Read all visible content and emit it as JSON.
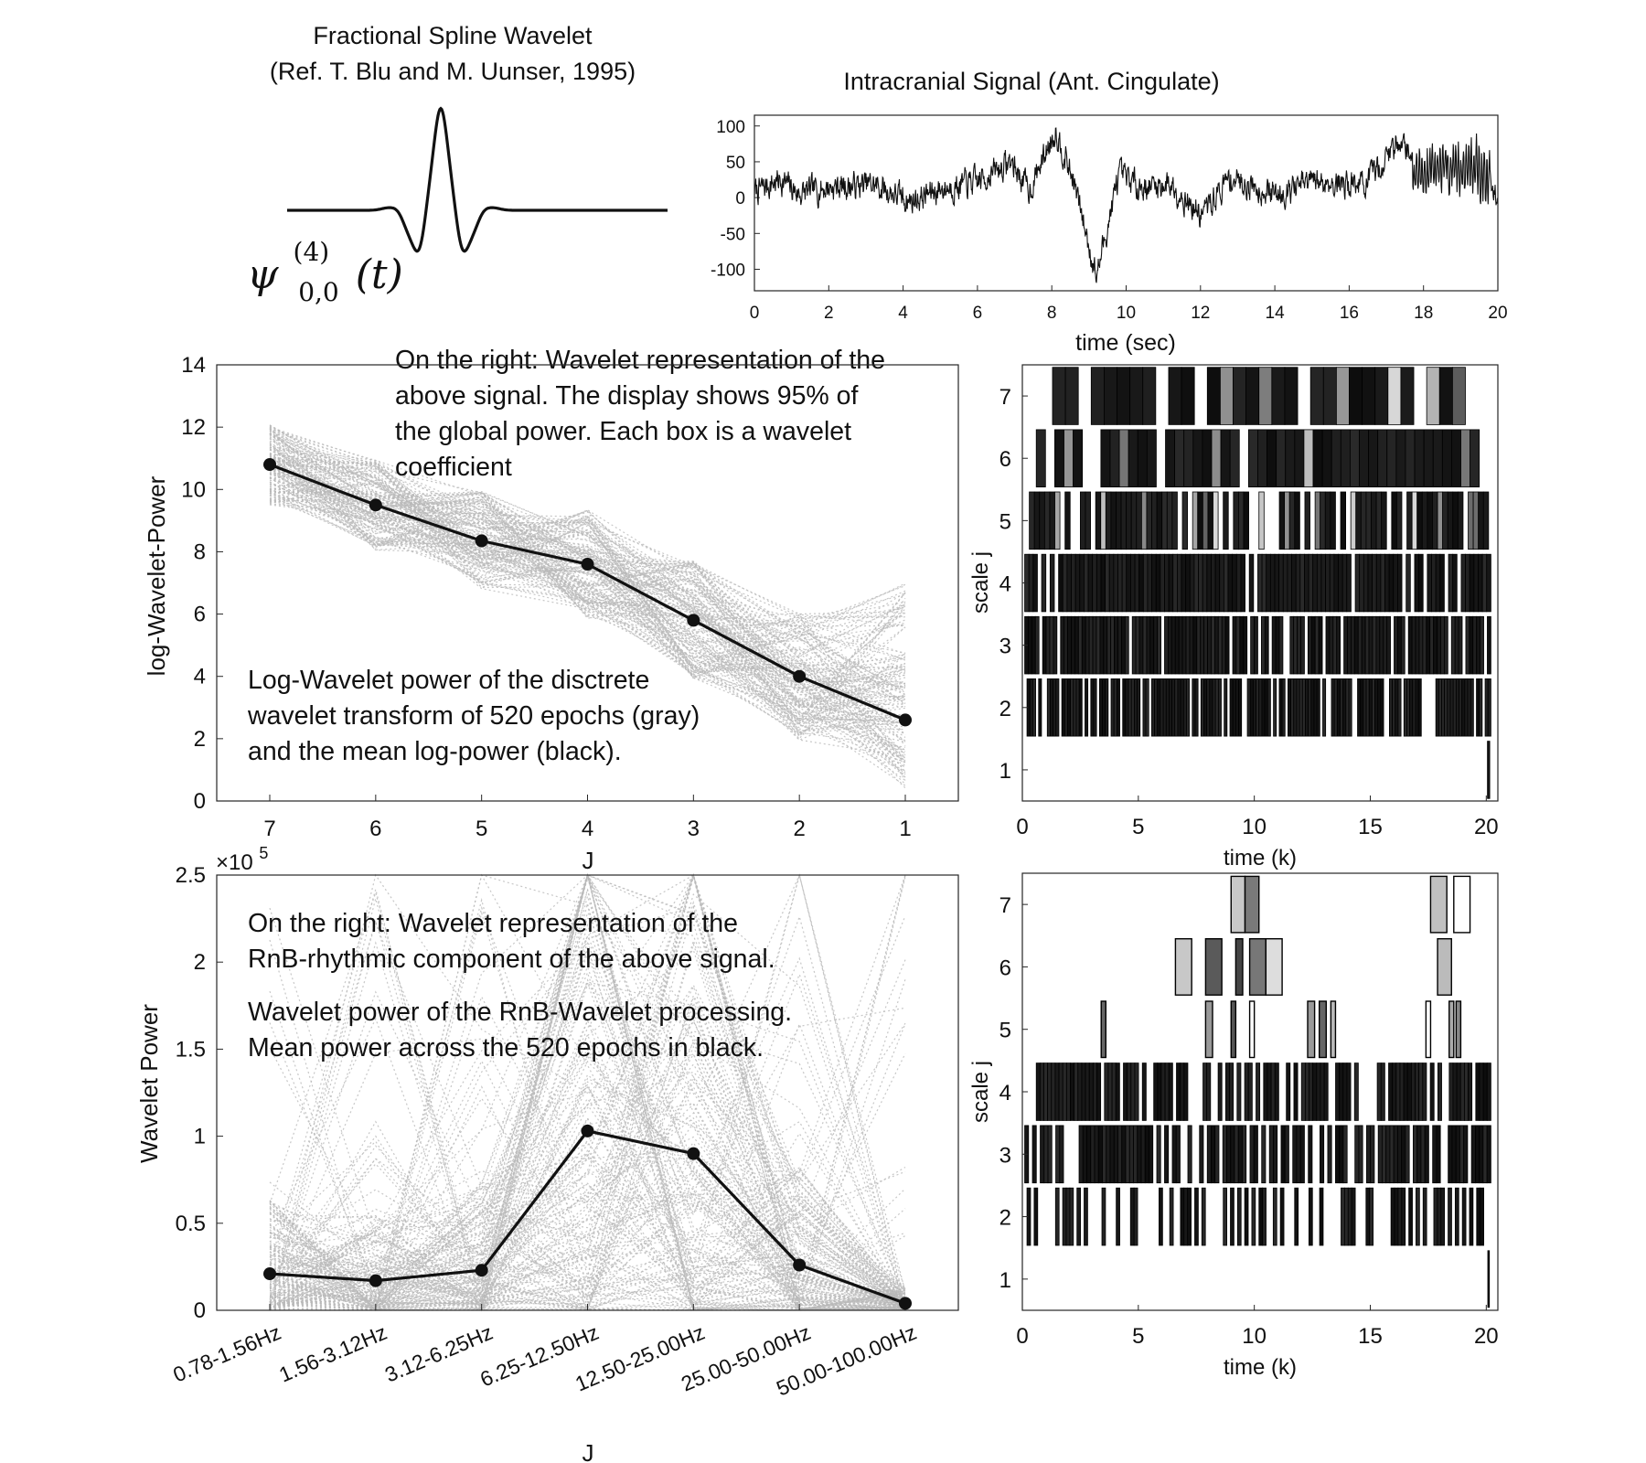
{
  "wavelet_panel": {
    "title_line1": "Fractional Spline Wavelet",
    "title_line2": "(Ref. T. Blu and M. Uunser, 1995)",
    "formula_main": "ψ",
    "formula_sup": "(4)",
    "formula_sub": "0,0",
    "formula_arg": "(t)"
  },
  "annotations": {
    "mid_right_1": "On the right: Wavelet representation of the",
    "mid_right_2": "above signal. The display shows 95% of",
    "mid_right_3": "the global power. Each box is a wavelet",
    "mid_right_4": "coefficient",
    "mid_low_1": "Log-Wavelet power of the disctrete",
    "mid_low_2": "wavelet transform of 520 epochs (gray)",
    "mid_low_3": "and the mean log-power (black).",
    "bot_1": "On the right: Wavelet representation of the",
    "bot_2": "RnB-rhythmic component of the above signal.",
    "bot_3": "Wavelet power of the RnB-Wavelet processing.",
    "bot_4": "Mean power across the 520 epochs in black."
  },
  "colors": {
    "ink": "#111111",
    "gray_lines": "#b9b9b9",
    "axis": "#262626"
  },
  "chart_data": [
    {
      "id": "signal",
      "type": "line",
      "title": "Intracranial Signal (Ant. Cingulate)",
      "xlabel": "time (sec)",
      "ylabel": "",
      "xlim": [
        0,
        20
      ],
      "ylim": [
        -130,
        115
      ],
      "xticks": [
        0,
        2,
        4,
        6,
        8,
        10,
        12,
        14,
        16,
        18,
        20
      ],
      "yticks": [
        100,
        50,
        0,
        -50,
        -100
      ],
      "envelope": [
        [
          0,
          8
        ],
        [
          0.7,
          25
        ],
        [
          1.2,
          5
        ],
        [
          2,
          15
        ],
        [
          3.2,
          18
        ],
        [
          4.2,
          -5
        ],
        [
          5,
          12
        ],
        [
          6,
          22
        ],
        [
          6.9,
          50
        ],
        [
          7.4,
          10
        ],
        [
          8.1,
          95
        ],
        [
          8.6,
          20
        ],
        [
          9.2,
          -110
        ],
        [
          9.8,
          30
        ],
        [
          10.5,
          15
        ],
        [
          11.2,
          20
        ],
        [
          12,
          -25
        ],
        [
          12.8,
          28
        ],
        [
          14,
          5
        ],
        [
          15,
          22
        ],
        [
          16.5,
          20
        ],
        [
          17.4,
          85
        ],
        [
          17.8,
          35
        ],
        [
          18.5,
          45
        ],
        [
          19.5,
          40
        ],
        [
          20,
          0
        ]
      ],
      "noise_amplitude": 22
    },
    {
      "id": "log_power",
      "type": "line",
      "title": "",
      "xlabel": "J",
      "ylabel": "log-Wavelet-Power",
      "categories": [
        "7",
        "6",
        "5",
        "4",
        "3",
        "2",
        "1"
      ],
      "ylim": [
        0,
        14
      ],
      "yticks": [
        0,
        2,
        4,
        6,
        8,
        10,
        12,
        14
      ],
      "mean": [
        10.8,
        9.5,
        8.35,
        7.6,
        5.8,
        4.0,
        2.6
      ],
      "epochs": 520,
      "mean_series_label": "mean log-power",
      "epoch_series_label": "520 epochs"
    },
    {
      "id": "wavelet_power",
      "type": "line",
      "title": "",
      "xlabel": "J",
      "ylabel": "Wavelet Power",
      "y_multiplier": "×10",
      "y_multiplier_exp": "5",
      "categories": [
        "0.78-1.56Hz",
        "1.56-3.12Hz",
        "3.12-6.25Hz",
        "6.25-12.50Hz",
        "12.50-25.00Hz",
        "25.00-50.00Hz",
        "50.00-100.00Hz"
      ],
      "ylim": [
        0,
        2.5
      ],
      "yticks": [
        0,
        0.5,
        1,
        1.5,
        2,
        2.5
      ],
      "ytick_labels": [
        "0",
        "0.5",
        "1",
        "1.5",
        "2",
        "2.5"
      ],
      "mean": [
        0.21,
        0.17,
        0.23,
        1.03,
        0.9,
        0.26,
        0.04
      ]
    },
    {
      "id": "scalogram_full",
      "type": "heatmap",
      "title": "",
      "xlabel": "time (k)",
      "ylabel": "scale j",
      "xlim": [
        0,
        20.5
      ],
      "xticks": [
        0,
        5,
        10,
        15,
        20
      ],
      "yticks": [
        1,
        2,
        3,
        4,
        5,
        6,
        7
      ],
      "scales": [
        {
          "j": 7,
          "start": 1.3,
          "end": 19.1,
          "count": 32,
          "fill": 0.92,
          "seed": 71
        },
        {
          "j": 6,
          "start": 0.6,
          "end": 19.7,
          "count": 48,
          "fill": 0.88,
          "seed": 61
        },
        {
          "j": 5,
          "start": 0.3,
          "end": 20.1,
          "count": 90,
          "fill": 0.8,
          "seed": 51
        },
        {
          "j": 4,
          "start": 0.1,
          "end": 20.2,
          "count": 110,
          "fill": 0.9,
          "seed": 41
        },
        {
          "j": 3,
          "start": 0.1,
          "end": 20.2,
          "count": 130,
          "fill": 0.88,
          "seed": 31
        },
        {
          "j": 2,
          "start": 0.2,
          "end": 20.2,
          "count": 160,
          "fill": 0.72,
          "seed": 21
        },
        {
          "j": 1,
          "start": 20.05,
          "end": 20.15,
          "count": 1,
          "fill": 1.0,
          "seed": 11
        }
      ]
    },
    {
      "id": "scalogram_rnb",
      "type": "heatmap",
      "title": "",
      "xlabel": "time (k)",
      "ylabel": "scale j",
      "xlim": [
        0,
        20.5
      ],
      "xticks": [
        0,
        5,
        10,
        15,
        20
      ],
      "yticks": [
        1,
        2,
        3,
        4,
        5,
        6,
        7
      ],
      "boxes": [
        [
          7,
          9.0,
          9.6,
          "#c8c8c8"
        ],
        [
          7,
          9.6,
          10.2,
          "#7a7a7a"
        ],
        [
          7,
          17.6,
          18.3,
          "#c0c0c0"
        ],
        [
          7,
          18.6,
          19.3,
          "#ffffff"
        ],
        [
          6,
          6.6,
          7.3,
          "#c8c8c8"
        ],
        [
          6,
          7.9,
          8.6,
          "#5a5a5a"
        ],
        [
          6,
          9.2,
          9.5,
          "#444444"
        ],
        [
          6,
          9.8,
          10.5,
          "#777777"
        ],
        [
          6,
          10.5,
          11.2,
          "#dddddd"
        ],
        [
          6,
          17.9,
          18.5,
          "#bbbbbb"
        ],
        [
          5,
          3.4,
          3.6,
          "#666666"
        ],
        [
          5,
          7.9,
          8.2,
          "#999999"
        ],
        [
          5,
          9.0,
          9.2,
          "#555555"
        ],
        [
          5,
          9.8,
          10.0,
          "#ffffff"
        ],
        [
          5,
          12.3,
          12.6,
          "#999999"
        ],
        [
          5,
          12.8,
          13.1,
          "#666666"
        ],
        [
          5,
          13.3,
          13.5,
          "#bbbbbb"
        ],
        [
          5,
          17.4,
          17.6,
          "#ffffff"
        ],
        [
          5,
          18.4,
          18.6,
          "#aaaaaa"
        ],
        [
          5,
          18.7,
          18.9,
          "#888888"
        ]
      ],
      "dense_scales": [
        {
          "j": 4,
          "start": 0.6,
          "end": 20.2,
          "count": 120,
          "fill": 0.72,
          "seed": 44
        },
        {
          "j": 3,
          "start": 0.1,
          "end": 20.2,
          "count": 120,
          "fill": 0.62,
          "seed": 33
        },
        {
          "j": 2,
          "start": 0.2,
          "end": 20.2,
          "count": 130,
          "fill": 0.34,
          "seed": 22
        }
      ],
      "scale1_bar": [
        20.05,
        20.15
      ]
    }
  ]
}
